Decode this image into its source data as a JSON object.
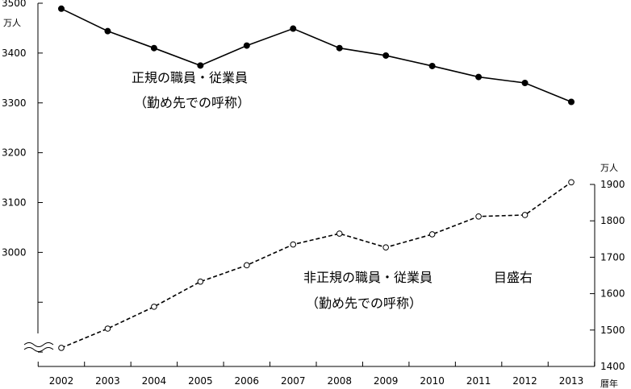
{
  "chart_data": {
    "type": "line",
    "x": [
      2002,
      2003,
      2004,
      2005,
      2006,
      2007,
      2008,
      2009,
      2010,
      2011,
      2012,
      2013
    ],
    "x_unit": "暦年",
    "left_axis": {
      "unit": "万人",
      "ylim": [
        2700,
        3500
      ],
      "labeled_ticks": [
        3000,
        3100,
        3200,
        3300,
        3400,
        3500
      ],
      "all_ticks": [
        2700,
        2800,
        2900,
        3000,
        3100,
        3200,
        3300,
        3400,
        3500
      ]
    },
    "right_axis": {
      "unit": "万人",
      "ylim": [
        1400,
        1900
      ],
      "labeled_ticks": [
        1400,
        1500,
        1600,
        1700,
        1800,
        1900
      ]
    },
    "series": [
      {
        "label_lines": [
          "正規の職員・従業員",
          "（勤め先での呼称）"
        ],
        "axis": "left",
        "style": "solid",
        "marker": "filled",
        "values": [
          3489,
          3444,
          3410,
          3375,
          3415,
          3449,
          3410,
          3395,
          3374,
          3352,
          3340,
          3302
        ]
      },
      {
        "label_lines": [
          "非正規の職員・従業員",
          "（勤め先での呼称）"
        ],
        "axis": "right",
        "style": "dashed",
        "marker": "open",
        "values": [
          1451,
          1504,
          1564,
          1633,
          1678,
          1735,
          1765,
          1727,
          1763,
          1812,
          1816,
          1906
        ]
      }
    ],
    "right_axis_note": "目盛右",
    "grid": false
  }
}
